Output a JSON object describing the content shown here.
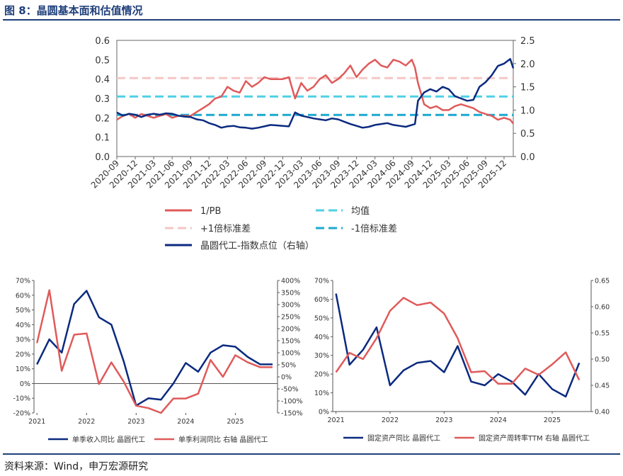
{
  "figure": {
    "title": "图 8：晶圆基本面和估值情况",
    "source": "资料来源：Wind，申万宏源研究"
  },
  "colors": {
    "navy": "#0b2a7f",
    "red": "#e05a5a",
    "pink": "#f6c6c6",
    "light_blue": "#4fd0e6",
    "teal": "#1ba9cf"
  },
  "chart_data": [
    {
      "type": "line",
      "id": "valuation",
      "title": "",
      "xlabel": "",
      "ylabel_left": "1/PB",
      "ylabel_right": "晶圆代工-指数点位（右轴）",
      "ylim_left": [
        0,
        0.6
      ],
      "ylim_right": [
        0,
        2.5
      ],
      "yticks_left": [
        "0.0",
        "0.1",
        "0.2",
        "0.3",
        "0.4",
        "0.5",
        "0.6"
      ],
      "yticks_right": [
        "0.0",
        "0.5",
        "1.0",
        "1.5",
        "2.0",
        "2.5"
      ],
      "x_ticks": [
        "2020-09",
        "2020-12",
        "2021-03",
        "2021-06",
        "2021-09",
        "2021-12",
        "2022-03",
        "2022-06",
        "2022-09",
        "2022-12",
        "2023-03",
        "2023-06",
        "2023-09",
        "2023-12",
        "2024-03",
        "2024-06",
        "2024-09",
        "2024-12",
        "2025-03",
        "2025-06",
        "2025-09",
        "2025-12"
      ],
      "x_range": [
        0,
        64.5
      ],
      "grid": false,
      "legend_position": "bottom",
      "series": [
        {
          "name": "1/PB",
          "axis": "left",
          "color": "#e05a5a",
          "x": [
            0,
            1,
            2,
            3,
            4,
            5,
            6,
            7,
            8,
            9,
            10,
            11,
            12,
            13,
            14,
            15,
            16,
            17,
            18,
            19,
            20,
            21,
            22,
            23,
            24,
            25,
            26,
            27,
            28,
            29,
            30,
            31,
            32,
            33,
            34,
            35,
            36,
            37,
            38,
            39,
            40,
            41,
            42,
            43,
            44,
            45,
            46,
            47,
            48,
            48.5,
            49,
            50,
            51,
            52,
            53,
            54,
            55,
            56,
            57,
            58,
            59,
            60,
            61,
            62,
            63,
            64,
            64.5
          ],
          "values": [
            0.19,
            0.21,
            0.22,
            0.2,
            0.22,
            0.21,
            0.2,
            0.21,
            0.22,
            0.2,
            0.21,
            0.21,
            0.21,
            0.23,
            0.25,
            0.27,
            0.3,
            0.31,
            0.36,
            0.34,
            0.33,
            0.39,
            0.36,
            0.38,
            0.41,
            0.4,
            0.4,
            0.4,
            0.41,
            0.3,
            0.38,
            0.34,
            0.36,
            0.4,
            0.42,
            0.38,
            0.4,
            0.43,
            0.47,
            0.41,
            0.45,
            0.48,
            0.5,
            0.47,
            0.46,
            0.5,
            0.49,
            0.47,
            0.5,
            0.46,
            0.38,
            0.27,
            0.25,
            0.26,
            0.24,
            0.24,
            0.26,
            0.27,
            0.26,
            0.25,
            0.23,
            0.22,
            0.21,
            0.19,
            0.2,
            0.19,
            0.17
          ]
        },
        {
          "name": "晶圆代工-指数点位（右轴）",
          "axis": "right",
          "color": "#0b2a7f",
          "x": [
            0,
            1,
            2,
            3,
            4,
            5,
            6,
            7,
            8,
            9,
            10,
            11,
            12,
            13,
            14,
            15,
            16,
            17,
            18,
            19,
            20,
            21,
            22,
            23,
            24,
            25,
            26,
            27,
            28,
            29,
            30,
            31,
            32,
            33,
            34,
            35,
            36,
            37,
            38,
            39,
            40,
            41,
            42,
            43,
            44,
            45,
            46,
            47,
            48,
            48.5,
            49,
            50,
            51,
            52,
            53,
            54,
            55,
            56,
            57,
            58,
            59,
            60,
            61,
            62,
            63,
            64,
            64.5
          ],
          "values": [
            0.95,
            0.88,
            0.92,
            0.9,
            0.85,
            0.9,
            0.92,
            0.9,
            0.93,
            0.92,
            0.88,
            0.86,
            0.85,
            0.8,
            0.78,
            0.72,
            0.68,
            0.62,
            0.65,
            0.66,
            0.63,
            0.62,
            0.6,
            0.62,
            0.65,
            0.68,
            0.67,
            0.66,
            0.65,
            0.95,
            0.88,
            0.85,
            0.82,
            0.8,
            0.78,
            0.82,
            0.8,
            0.75,
            0.7,
            0.66,
            0.62,
            0.64,
            0.68,
            0.7,
            0.72,
            0.68,
            0.66,
            0.64,
            0.68,
            0.7,
            1.2,
            1.38,
            1.45,
            1.4,
            1.5,
            1.45,
            1.3,
            1.25,
            1.2,
            1.22,
            1.5,
            1.6,
            1.75,
            1.95,
            2.0,
            2.1,
            1.9
          ]
        },
        {
          "name": "均值",
          "axis": "left",
          "style": "dashed",
          "color": "#4fd0e6",
          "x": [
            0,
            64.5
          ],
          "values": [
            0.31,
            0.31
          ]
        },
        {
          "name": "+1倍标准差",
          "axis": "left",
          "style": "dashed",
          "color": "#f6c6c6",
          "x": [
            0,
            64.5
          ],
          "values": [
            0.405,
            0.405
          ]
        },
        {
          "name": "-1倍标准差",
          "axis": "left",
          "style": "dashed",
          "color": "#1ba9cf",
          "x": [
            0,
            64.5
          ],
          "values": [
            0.215,
            0.215
          ]
        }
      ],
      "legend": [
        "1/PB",
        "均值",
        "+1倍标准差",
        "-1倍标准差",
        "晶圆代工-指数点位（右轴）"
      ]
    },
    {
      "type": "line",
      "id": "revenue-profit",
      "title": "",
      "ylim_left": [
        -20,
        70
      ],
      "ylim_right": [
        -150,
        400
      ],
      "yticks_left": [
        "-20%",
        "-10%",
        "0%",
        "10%",
        "20%",
        "30%",
        "40%",
        "50%",
        "60%",
        "70%"
      ],
      "yticks_right": [
        "-150%",
        "-100%",
        "-50%",
        "0%",
        "50%",
        "100%",
        "150%",
        "200%",
        "250%",
        "300%",
        "350%",
        "400%"
      ],
      "x_ticks": [
        "2021",
        "2022",
        "2023",
        "2024",
        "2025"
      ],
      "x_range": [
        2020.94,
        2025.85
      ],
      "grid": false,
      "legend_position": "bottom",
      "series": [
        {
          "name": "单季收入同比 晶圆代工",
          "axis": "left",
          "color": "#0b2a7f",
          "x": [
            2021.0,
            2021.25,
            2021.5,
            2021.75,
            2022.0,
            2022.25,
            2022.5,
            2022.75,
            2023.0,
            2023.25,
            2023.5,
            2023.75,
            2024.0,
            2024.25,
            2024.5,
            2024.75,
            2025.0,
            2025.25,
            2025.5,
            2025.75
          ],
          "values": [
            13,
            30,
            21,
            54,
            63,
            45,
            40,
            15,
            -15,
            -10,
            -11,
            0,
            14,
            8,
            21,
            26,
            25,
            18,
            13,
            13
          ]
        },
        {
          "name": "单季利润同比 右轴 晶圆代工",
          "axis": "right",
          "color": "#e05a5a",
          "x": [
            2021.0,
            2021.25,
            2021.5,
            2021.75,
            2022.0,
            2022.25,
            2022.5,
            2022.75,
            2023.0,
            2023.25,
            2023.5,
            2023.75,
            2024.0,
            2024.25,
            2024.5,
            2024.75,
            2025.0,
            2025.25,
            2025.5,
            2025.75
          ],
          "values": [
            140,
            360,
            25,
            175,
            180,
            -30,
            60,
            -20,
            -120,
            -130,
            -150,
            -90,
            -90,
            -70,
            70,
            0,
            90,
            60,
            40,
            40
          ]
        }
      ],
      "legend": [
        "单季收入同比 晶圆代工",
        "单季利润同比 右轴 晶圆代工"
      ]
    },
    {
      "type": "line",
      "id": "fixed-assets",
      "title": "",
      "ylim_left": [
        0,
        70
      ],
      "ylim_right": [
        0.4,
        0.65
      ],
      "yticks_left": [
        "0%",
        "10%",
        "20%",
        "30%",
        "40%",
        "50%",
        "60%",
        "70%"
      ],
      "yticks_right": [
        "0.40",
        "0.45",
        "0.50",
        "0.55",
        "0.60",
        "0.65"
      ],
      "x_ticks": [
        "2021",
        "2022",
        "2023",
        "2024",
        "2025"
      ],
      "x_range": [
        2020.94,
        2025.72
      ],
      "grid": false,
      "legend_position": "bottom",
      "series": [
        {
          "name": "固定资产同比 晶圆代工",
          "axis": "left",
          "color": "#0b2a7f",
          "x": [
            2021.0,
            2021.25,
            2021.5,
            2021.75,
            2022.0,
            2022.25,
            2022.5,
            2022.75,
            2023.0,
            2023.25,
            2023.5,
            2023.75,
            2024.0,
            2024.25,
            2024.5,
            2024.75,
            2025.0,
            2025.25,
            2025.5
          ],
          "values": [
            63,
            25,
            33,
            45,
            14,
            22,
            26,
            27,
            21,
            35,
            16,
            14,
            20,
            16,
            9,
            20,
            12,
            8,
            26
          ]
        },
        {
          "name": "固定资产周转率TTM 右轴 晶圆代工",
          "axis": "right",
          "color": "#e05a5a",
          "x": [
            2021.0,
            2021.25,
            2021.5,
            2021.75,
            2022.0,
            2022.25,
            2022.5,
            2022.75,
            2023.0,
            2023.25,
            2023.5,
            2023.75,
            2024.0,
            2024.25,
            2024.5,
            2024.75,
            2025.0,
            2025.25,
            2025.5
          ],
          "values": [
            0.475,
            0.512,
            0.5,
            0.54,
            0.592,
            0.617,
            0.603,
            0.608,
            0.587,
            0.54,
            0.475,
            0.477,
            0.453,
            0.453,
            0.482,
            0.47,
            0.49,
            0.513,
            0.46
          ]
        }
      ],
      "legend": [
        "固定资产同比 晶圆代工",
        "固定资产周转率TTM 右轴 晶圆代工"
      ]
    }
  ]
}
